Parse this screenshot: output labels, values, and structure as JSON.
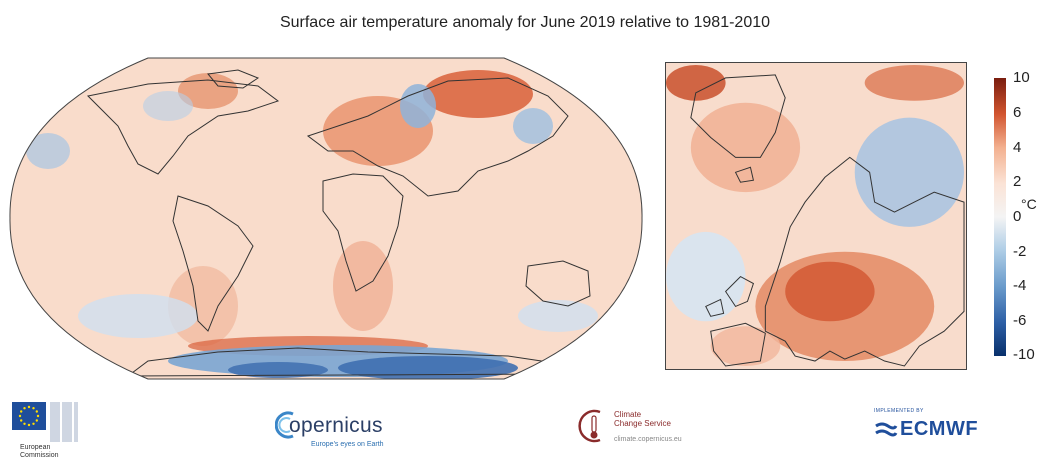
{
  "title": "Surface air temperature anomaly for June 2019 relative to 1981-2010",
  "colorbar": {
    "unit": "°C",
    "ticks": [
      "10",
      "6",
      "4",
      "2",
      "0",
      "-2",
      "-4",
      "-6",
      "-10"
    ],
    "colors": [
      "#08306b",
      "#2d5fa6",
      "#6a9bcb",
      "#aecde6",
      "#e8f0f8",
      "#fbe3d6",
      "#f3b08f",
      "#e07347",
      "#b93a1e",
      "#7a1d0f"
    ]
  },
  "logos": {
    "ec_line1": "European",
    "ec_line2": "Commission",
    "copernicus": "opernicus",
    "copernicus_tagline": "Europe's eyes on Earth",
    "c3s_line1": "Climate",
    "c3s_line2": "Change Service",
    "c3s_url": "climate.copernicus.eu",
    "ecmwf_small": "IMPLEMENTED BY",
    "ecmwf": "ECMWF"
  }
}
